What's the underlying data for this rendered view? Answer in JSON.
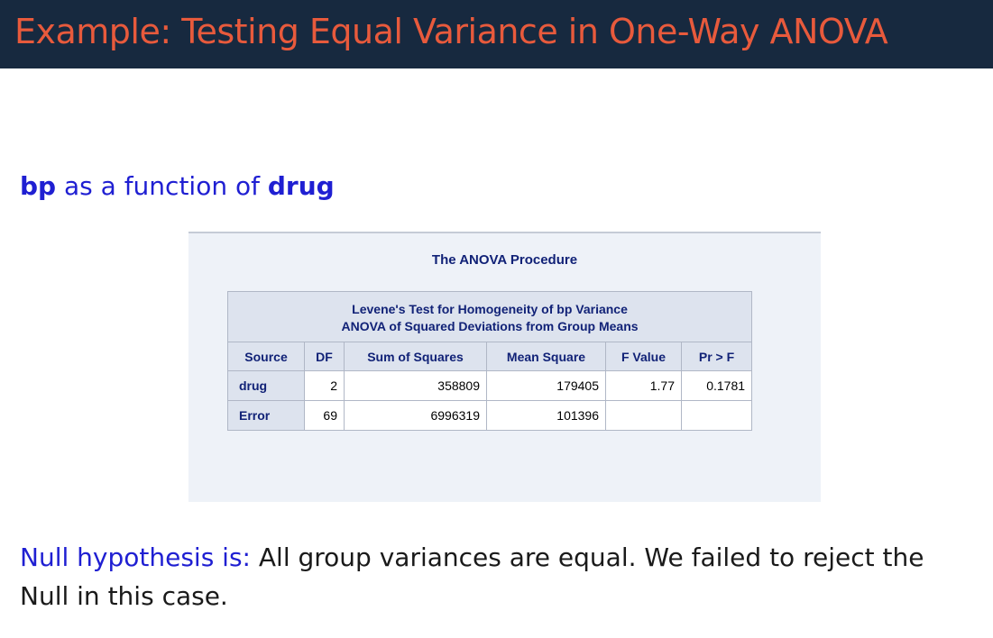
{
  "slide": {
    "title": "Example: Testing Equal Variance in One-Way ANOVA",
    "subtitle": {
      "var1": "bp",
      "connector": " as a function of ",
      "var2": "drug"
    },
    "conclusion": {
      "label": "Null hypothesis is:",
      "text": " All group variances are equal. We failed to reject the Null in this case."
    }
  },
  "sas_output": {
    "procedure_title": "The ANOVA Procedure",
    "table": {
      "caption_line1": "Levene's Test for Homogeneity of bp Variance",
      "caption_line2": "ANOVA of Squared Deviations from Group Means",
      "columns": [
        "Source",
        "DF",
        "Sum of Squares",
        "Mean Square",
        "F Value",
        "Pr > F"
      ],
      "rows": [
        {
          "source": "drug",
          "df": "2",
          "ss": "358809",
          "ms": "179405",
          "f": "1.77",
          "p": "0.1781"
        },
        {
          "source": "Error",
          "df": "69",
          "ss": "6996319",
          "ms": "101396",
          "f": "",
          "p": ""
        }
      ]
    }
  },
  "colors": {
    "title_bar": "#17293f",
    "title_text": "#e85a3c",
    "accent_blue": "#1f1fd2",
    "sas_header_text": "#112277",
    "sas_header_bg": "#dde3ee",
    "sas_panel_bg": "#eef2f8"
  }
}
